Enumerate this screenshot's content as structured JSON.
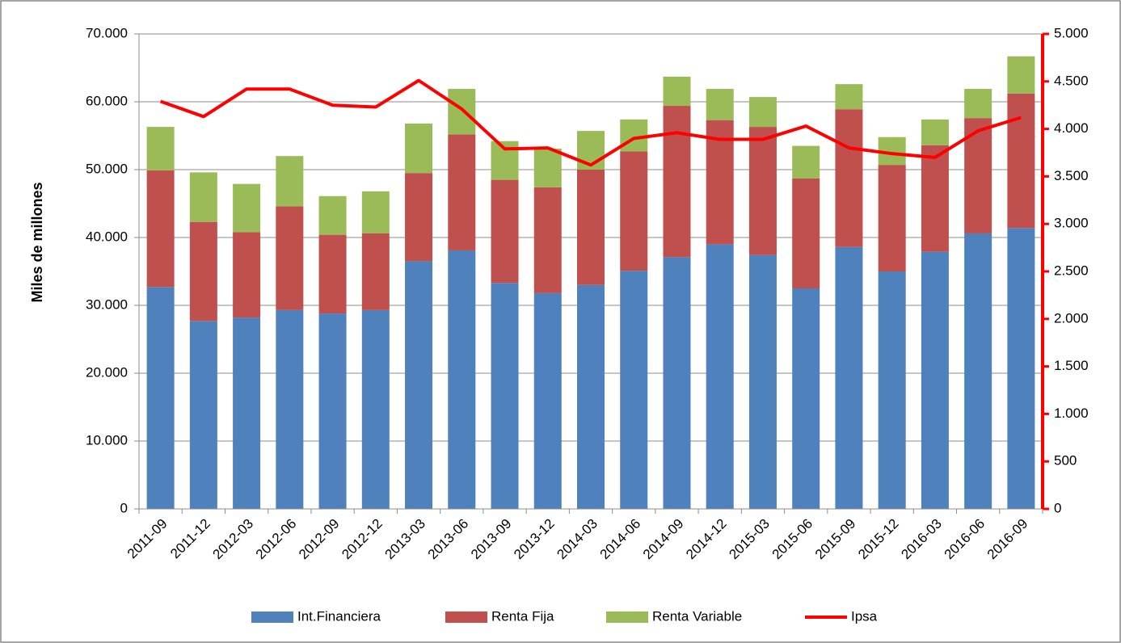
{
  "chart_data": {
    "type": "bar",
    "stacked": true,
    "categories": [
      "2011-09",
      "2011-12",
      "2012-03",
      "2012-06",
      "2012-09",
      "2012-12",
      "2013-03",
      "2013-06",
      "2013-09",
      "2013-12",
      "2014-03",
      "2014-06",
      "2014-09",
      "2014-12",
      "2015-03",
      "2015-06",
      "2015-09",
      "2015-12",
      "2016-03",
      "2016-06",
      "2016-09"
    ],
    "series": [
      {
        "name": "Int.Financiera",
        "color": "#4f81bd",
        "values": [
          32700,
          27700,
          28200,
          29300,
          28800,
          29300,
          36500,
          38100,
          33300,
          31800,
          33000,
          35100,
          37100,
          39000,
          37400,
          32500,
          38600,
          35000,
          37900,
          40600,
          41400
        ]
      },
      {
        "name": "Renta Fija",
        "color": "#c0504d",
        "values": [
          17200,
          14600,
          12600,
          15300,
          11600,
          11300,
          13000,
          17100,
          15200,
          15600,
          17000,
          17600,
          22300,
          18300,
          18900,
          16200,
          20300,
          15700,
          15700,
          17000,
          19800
        ]
      },
      {
        "name": "Renta Variable",
        "color": "#9bbb59",
        "values": [
          6400,
          7300,
          7100,
          7400,
          5700,
          6200,
          7300,
          6700,
          5700,
          5700,
          5700,
          4700,
          4300,
          4600,
          4400,
          4800,
          3700,
          4100,
          3800,
          4300,
          5500
        ]
      },
      {
        "name": "Ipsa",
        "color": "#ff0000",
        "type": "line",
        "axis": "y2",
        "values": [
          4290,
          4130,
          4420,
          4420,
          4250,
          4230,
          4510,
          4210,
          3790,
          3800,
          3620,
          3900,
          3960,
          3890,
          3890,
          4030,
          3800,
          3740,
          3700,
          3980,
          4120
        ]
      }
    ],
    "ylabel": "Miles de millones",
    "ylim": [
      0,
      70000
    ],
    "yticks": [
      0,
      {
        "value": 10000,
        "label": "10.000"
      },
      {
        "value": 20000,
        "label": "20.000"
      },
      {
        "value": 30000,
        "label": "30.000"
      },
      {
        "value": 40000,
        "label": "40.000"
      },
      {
        "value": 50000,
        "label": "50.000"
      },
      {
        "value": 60000,
        "label": "60.000"
      },
      {
        "value": 70000,
        "label": "70.000"
      }
    ],
    "y2lim": [
      0,
      5000
    ],
    "y2ticks": [
      0,
      500,
      {
        "value": 1000,
        "label": "1.000"
      },
      {
        "value": 1500,
        "label": "1.500"
      },
      {
        "value": 2000,
        "label": "2.000"
      },
      {
        "value": 2500,
        "label": "2.500"
      },
      {
        "value": 3000,
        "label": "3.000"
      },
      {
        "value": 3500,
        "label": "3.500"
      },
      {
        "value": 4000,
        "label": "4.000"
      },
      {
        "value": 4500,
        "label": "4.500"
      },
      {
        "value": 5000,
        "label": "5.000"
      }
    ],
    "grid": true,
    "legend": "bottom"
  }
}
